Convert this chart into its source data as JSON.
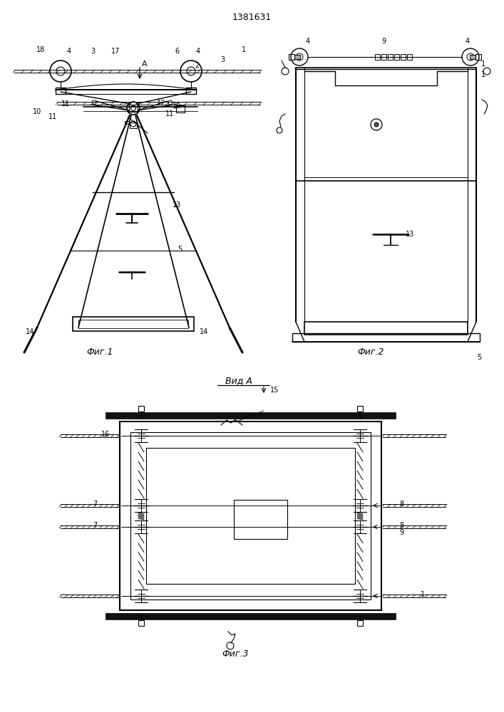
{
  "title": "1381631",
  "bg_color": "#ffffff",
  "line_color": "#000000",
  "fig1_label": "Фиг.1",
  "fig2_label": "Фиг.2",
  "fig3_label": "Фиг.3",
  "vid_a_label": "Вид А"
}
